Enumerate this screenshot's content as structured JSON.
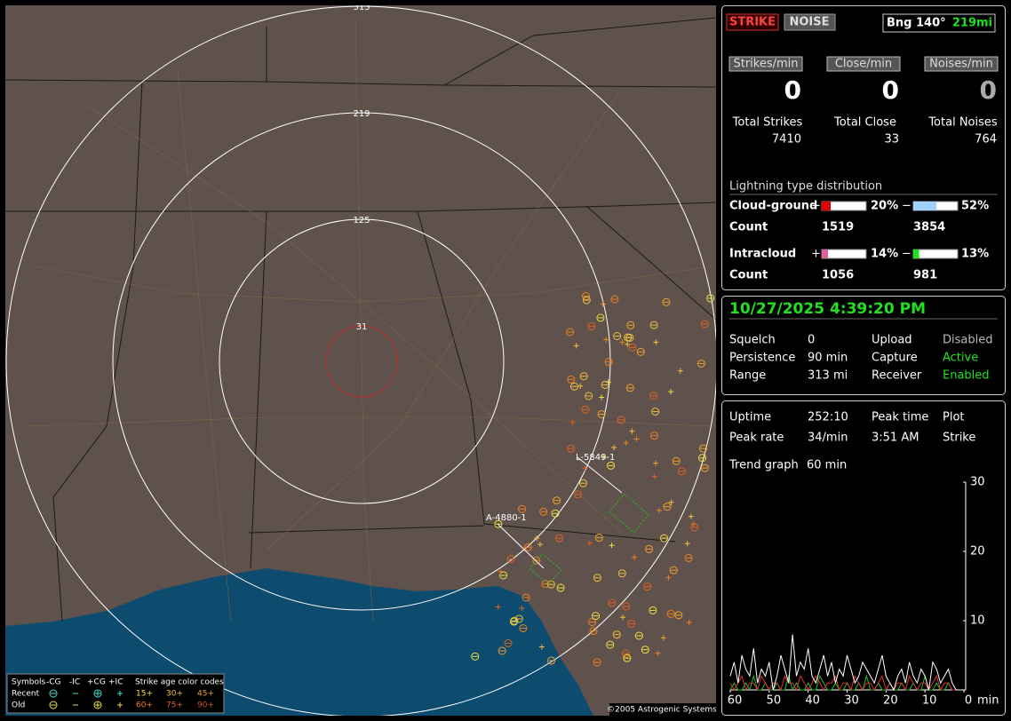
{
  "map": {
    "ring_labels": [
      "313",
      "219",
      "125",
      "31"
    ],
    "track_labels": [
      "L-5849-1",
      "A-4880-1"
    ],
    "legend": {
      "symbols_title": "Symbols",
      "types": [
        "-CG",
        "-IC",
        "+CG",
        "+IC"
      ],
      "age_title": "Strike age color codes",
      "rows": [
        "Recent",
        "Old"
      ],
      "recent_ages": [
        "15+",
        "30+",
        "45+"
      ],
      "old_ages": [
        "60+",
        "75+",
        "90+"
      ]
    },
    "copyright": "©2005 Astrogenic Systems"
  },
  "header": {
    "strike_button": "STRIKE",
    "noise_button": "NOISE",
    "bearing": "Bng 140°",
    "distance": "219mi"
  },
  "rates": [
    {
      "label": "Strikes/min",
      "value": "0"
    },
    {
      "label": "Close/min",
      "value": "0"
    },
    {
      "label": "Noises/min",
      "value": "0"
    }
  ],
  "totals": [
    {
      "label": "Total Strikes",
      "value": "7410"
    },
    {
      "label": "Total Close",
      "value": "33"
    },
    {
      "label": "Total Noises",
      "value": "764"
    }
  ],
  "distribution": {
    "title": "Lightning type distribution",
    "rows": [
      {
        "label": "Cloud-ground",
        "plus": "+",
        "plus_value": 20,
        "plus_label": "20%",
        "plus_color": "#e00000",
        "minus": "−",
        "minus_value": 52,
        "minus_label": "52%",
        "minus_color": "#9fd0ff",
        "count_label": "Count",
        "plus_count": "1519",
        "minus_count": "3854"
      },
      {
        "label": "Intracloud",
        "plus": "+",
        "plus_value": 14,
        "plus_label": "14%",
        "plus_color": "#e060a0",
        "minus": "−",
        "minus_value": 13,
        "minus_label": "13%",
        "minus_color": "#20e020",
        "count_label": "Count",
        "plus_count": "1056",
        "minus_count": "981"
      }
    ]
  },
  "status": {
    "datetime": "10/27/2025 4:39:20 PM",
    "rows": [
      [
        "Squelch",
        "0",
        "Upload",
        "Disabled"
      ],
      [
        "Persistence",
        "90 min",
        "Capture",
        "Active"
      ],
      [
        "Range",
        "313 mi",
        "Receiver",
        "Enabled"
      ]
    ]
  },
  "stats": {
    "rows": [
      [
        "Uptime",
        "252:10",
        "Peak time",
        "Plot"
      ],
      [
        "Peak rate",
        "34/min",
        "3:51 AM",
        "Strike"
      ]
    ],
    "trend_label": "Trend graph",
    "trend_value": "60 min"
  },
  "trend": {
    "ylim": [
      0,
      30
    ],
    "yticks": [
      10,
      20,
      30
    ],
    "xlim": [
      60,
      0
    ],
    "xticks": [
      60,
      50,
      40,
      30,
      20,
      10,
      0
    ],
    "x_unit": "min",
    "series": [
      {
        "color": "#ffffff",
        "values": [
          2,
          4,
          1,
          5,
          3,
          2,
          6,
          1,
          3,
          2,
          4,
          0,
          2,
          5,
          3,
          1,
          8,
          2,
          4,
          3,
          6,
          2,
          1,
          3,
          5,
          2,
          4,
          1,
          3,
          2,
          5,
          3,
          1,
          2,
          4,
          3,
          2,
          1,
          3,
          5,
          2,
          1,
          0,
          2,
          3,
          1,
          4,
          2,
          1,
          3,
          2,
          0,
          4,
          3,
          1,
          2,
          3,
          1,
          0,
          0
        ]
      },
      {
        "color": "#e03030",
        "values": [
          1,
          0,
          1,
          2,
          0,
          1,
          1,
          0,
          2,
          1,
          0,
          1,
          1,
          0,
          2,
          1,
          1,
          0,
          2,
          1,
          0,
          1,
          2,
          1,
          0,
          1,
          1,
          2,
          0,
          1,
          1,
          0,
          2,
          1,
          0,
          1,
          1,
          0,
          1,
          2,
          0,
          1,
          0,
          1,
          1,
          0,
          2,
          1,
          0,
          1,
          1,
          0,
          1,
          2,
          0,
          1,
          1,
          0,
          0,
          0
        ]
      },
      {
        "color": "#20c020",
        "values": [
          0,
          1,
          0,
          0,
          1,
          0,
          2,
          0,
          0,
          1,
          0,
          0,
          1,
          0,
          0,
          2,
          0,
          1,
          0,
          0,
          1,
          0,
          0,
          2,
          1,
          0,
          0,
          1,
          0,
          0,
          1,
          0,
          0,
          1,
          0,
          2,
          0,
          0,
          1,
          0,
          0,
          1,
          0,
          0,
          1,
          0,
          0,
          1,
          0,
          0,
          2,
          0,
          0,
          1,
          0,
          0,
          1,
          0,
          0,
          0
        ]
      }
    ]
  }
}
